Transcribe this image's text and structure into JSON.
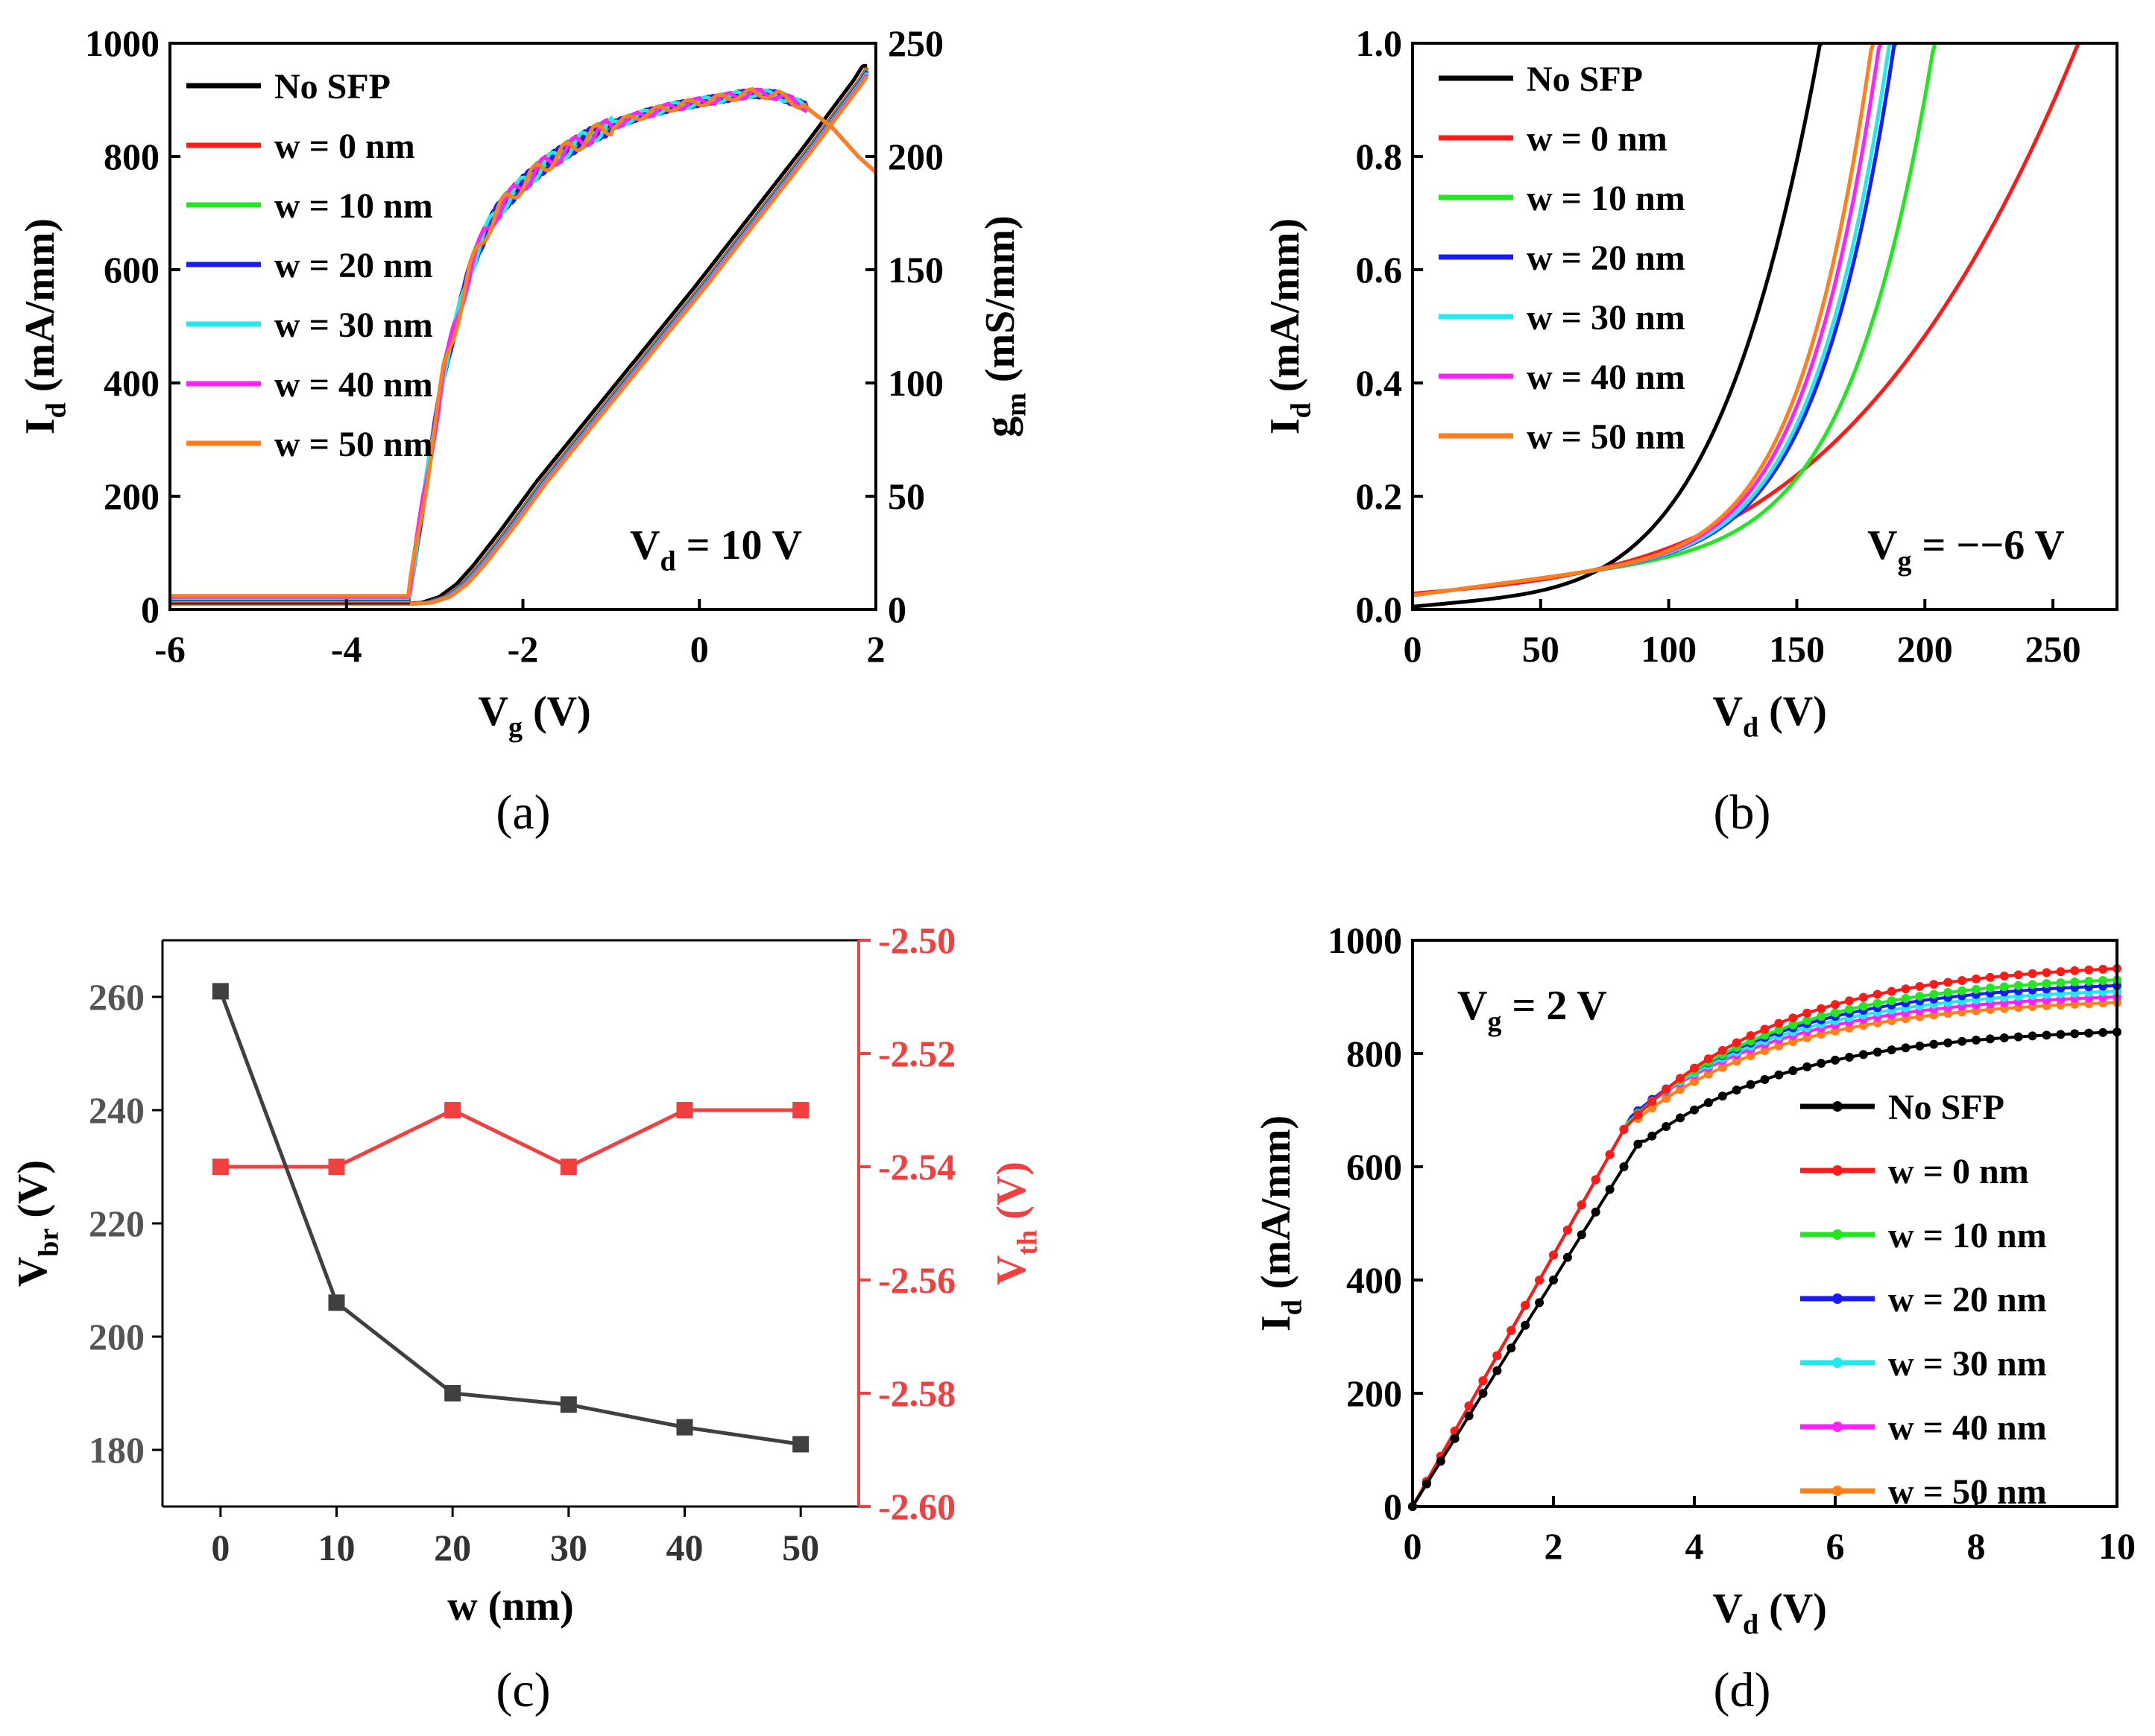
{
  "colors": {
    "No SFP": "#000000",
    "w = 0 nm": "#ff1a1a",
    "w = 10 nm": "#22e622",
    "w = 20 nm": "#1a1aff",
    "w = 30 nm": "#22e8f0",
    "w = 40 nm": "#ff22ff",
    "w = 50 nm": "#ff7f1a",
    "vbr": "#404040",
    "vth": "#f04040"
  },
  "chart_data": [
    {
      "id": "a",
      "panel_label": "(a)",
      "type": "line",
      "xlabel": "V",
      "xlabel_sub": "g",
      "xlabel_unit": "(V)",
      "ylabel": "I",
      "ylabel_sub": "d",
      "ylabel_unit": "(mA/mm)",
      "y2label": "g",
      "y2label_sub": "m",
      "y2label_unit": "(mS/mm)",
      "xlim": [
        -6,
        2
      ],
      "ylim": [
        0,
        1000
      ],
      "y2lim": [
        0,
        250
      ],
      "xticks": [
        "-6",
        "-4",
        "-2",
        "0",
        "2"
      ],
      "xtick_values": [
        -6,
        -4,
        -2,
        0,
        2
      ],
      "yticks": [
        "0",
        "200",
        "400",
        "600",
        "800",
        "1000"
      ],
      "ytick_values": [
        0,
        200,
        400,
        600,
        800,
        1000
      ],
      "y2ticks": [
        "0",
        "50",
        "100",
        "150",
        "200",
        "250"
      ],
      "y2tick_values": [
        0,
        50,
        100,
        150,
        200,
        250
      ],
      "annotation": {
        "main": "V",
        "sub": "d",
        "rest": " = 10 V"
      },
      "legend": [
        "No SFP",
        "w = 0 nm",
        "w = 10 nm",
        "w = 20 nm",
        "w = 30 nm",
        "w = 40 nm",
        "w = 50 nm"
      ],
      "id_curve": {
        "x": [
          -6,
          -3.3,
          -3.1,
          -2.9,
          -2.7,
          -2.5,
          -2.2,
          -1.8,
          -1.2,
          -0.6,
          0,
          0.6,
          1.2,
          1.8,
          1.9
        ],
        "y": [
          10,
          10,
          12,
          22,
          45,
          80,
          140,
          225,
          340,
          455,
          570,
          690,
          810,
          935,
          960
        ]
      },
      "gm_curve": {
        "x": [
          -6,
          -3.3,
          -3.2,
          -3.1,
          -3.0,
          -2.9,
          -2.8,
          -2.7,
          -2.6,
          -2.5,
          -2.4,
          -2.3,
          -2.2,
          -2.0,
          -1.8,
          -1.5,
          -1.2,
          -0.9,
          -0.6,
          -0.3,
          0,
          0.3,
          0.6,
          0.9,
          1.2,
          1.5,
          1.8,
          2.0
        ],
        "y": [
          4,
          4,
          30,
          55,
          80,
          105,
          120,
          135,
          150,
          160,
          168,
          175,
          180,
          188,
          195,
          203,
          210,
          215,
          219,
          222,
          224,
          226,
          228,
          227,
          222,
          213,
          200,
          193
        ]
      }
    },
    {
      "id": "b",
      "panel_label": "(b)",
      "type": "line",
      "xlabel": "V",
      "xlabel_sub": "d",
      "xlabel_unit": "(V)",
      "ylabel": "I",
      "ylabel_sub": "d",
      "ylabel_unit": "(mA/mm)",
      "xlim": [
        0,
        275
      ],
      "ylim": [
        0,
        1.0
      ],
      "xticks": [
        "0",
        "50",
        "100",
        "150",
        "200",
        "250"
      ],
      "xtick_values": [
        0,
        50,
        100,
        150,
        200,
        250
      ],
      "yticks": [
        "0.0",
        "0.2",
        "0.4",
        "0.6",
        "0.8",
        "1.0"
      ],
      "ytick_values": [
        0,
        0.2,
        0.4,
        0.6,
        0.8,
        1.0
      ],
      "annotation": {
        "main": "V",
        "sub": "g",
        "rest": " = −−6 V"
      },
      "legend": [
        "No SFP",
        "w = 0 nm",
        "w = 10 nm",
        "w = 20 nm",
        "w = 30 nm",
        "w = 40 nm",
        "w = 50 nm"
      ],
      "breakdown_voltage": {
        "No SFP": 160,
        "w = 0 nm": 261,
        "w = 10 nm": 206,
        "w = 20 nm": 190,
        "w = 30 nm": 188,
        "w = 40 nm": 184,
        "w = 50 nm": 181
      }
    },
    {
      "id": "c",
      "panel_label": "(c)",
      "type": "line",
      "xlabel": "w (nm)",
      "ylabel": "V",
      "ylabel_sub": "br",
      "ylabel_unit": "(V)",
      "y2label": "V",
      "y2label_sub": "th",
      "y2label_unit": "(V)",
      "xlim": [
        -5,
        55
      ],
      "ylim": [
        170,
        270
      ],
      "y2lim": [
        -2.6,
        -2.5
      ],
      "xticks": [
        "0",
        "10",
        "20",
        "30",
        "40",
        "50"
      ],
      "xtick_values": [
        0,
        10,
        20,
        30,
        40,
        50
      ],
      "yticks": [
        "180",
        "200",
        "220",
        "240",
        "260"
      ],
      "ytick_values": [
        180,
        200,
        220,
        240,
        260
      ],
      "y2ticks": [
        "-2.60",
        "-2.58",
        "-2.56",
        "-2.54",
        "-2.52",
        "-2.50"
      ],
      "y2tick_values": [
        -2.6,
        -2.58,
        -2.56,
        -2.54,
        -2.52,
        -2.5
      ],
      "x": [
        0,
        10,
        20,
        30,
        40,
        50
      ],
      "series": [
        {
          "name": "V_br",
          "axis": "left",
          "values": [
            261,
            206,
            190,
            188,
            184,
            181
          ]
        },
        {
          "name": "V_th",
          "axis": "right",
          "values": [
            -2.54,
            -2.54,
            -2.53,
            -2.54,
            -2.53,
            -2.53
          ]
        }
      ]
    },
    {
      "id": "d",
      "panel_label": "(d)",
      "type": "line",
      "xlabel": "V",
      "xlabel_sub": "d",
      "xlabel_unit": "(V)",
      "ylabel": "I",
      "ylabel_sub": "d",
      "ylabel_unit": "(mA/mm)",
      "xlim": [
        0,
        10
      ],
      "ylim": [
        0,
        1000
      ],
      "xticks": [
        "0",
        "2",
        "4",
        "6",
        "8",
        "10"
      ],
      "xtick_values": [
        0,
        2,
        4,
        6,
        8,
        10
      ],
      "yticks": [
        "0",
        "200",
        "400",
        "600",
        "800",
        "1000"
      ],
      "ytick_values": [
        0,
        200,
        400,
        600,
        800,
        1000
      ],
      "annotation": {
        "main": "V",
        "sub": "g",
        "rest": " = 2 V"
      },
      "legend": [
        "No SFP",
        "w = 0 nm",
        "w = 10 nm",
        "w = 20 nm",
        "w = 30 nm",
        "w = 40 nm",
        "w = 50 nm"
      ],
      "saturation_current_at_10V": {
        "No SFP": 838,
        "w = 0 nm": 950,
        "w = 10 nm": 930,
        "w = 20 nm": 920,
        "w = 30 nm": 910,
        "w = 40 nm": 900,
        "w = 50 nm": 890
      },
      "knee_voltage": {
        "No SFP": 3.3,
        "w = 0 nm": 3.0,
        "w = 10 nm": 3.05,
        "w = 20 nm": 3.1,
        "w = 30 nm": 3.1,
        "w = 40 nm": 3.15,
        "w = 50 nm": 3.2
      }
    }
  ]
}
